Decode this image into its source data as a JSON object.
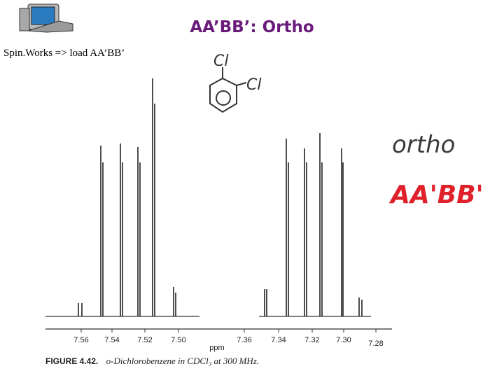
{
  "header": {
    "title": "AA’BB’: Ortho",
    "subtitle": "Spin.Works => load AA’BB’"
  },
  "annotations": {
    "substituent_top": "Cl",
    "substituent_side": "Cl",
    "pattern": "ortho",
    "spin_system": "AA'BB'"
  },
  "spectrum": {
    "left_axis_labels": [
      "7.56",
      "7.54",
      "7.52",
      "7.50"
    ],
    "axis_unit": "ppm",
    "right_axis_labels": [
      "7.36",
      "7.34",
      "7.32",
      "7.30",
      "7.28"
    ],
    "caption_label": "FIGURE 4.42.",
    "caption_text": "o-Dichlorobenzene in CDCl₃ at 300 MHz."
  }
}
